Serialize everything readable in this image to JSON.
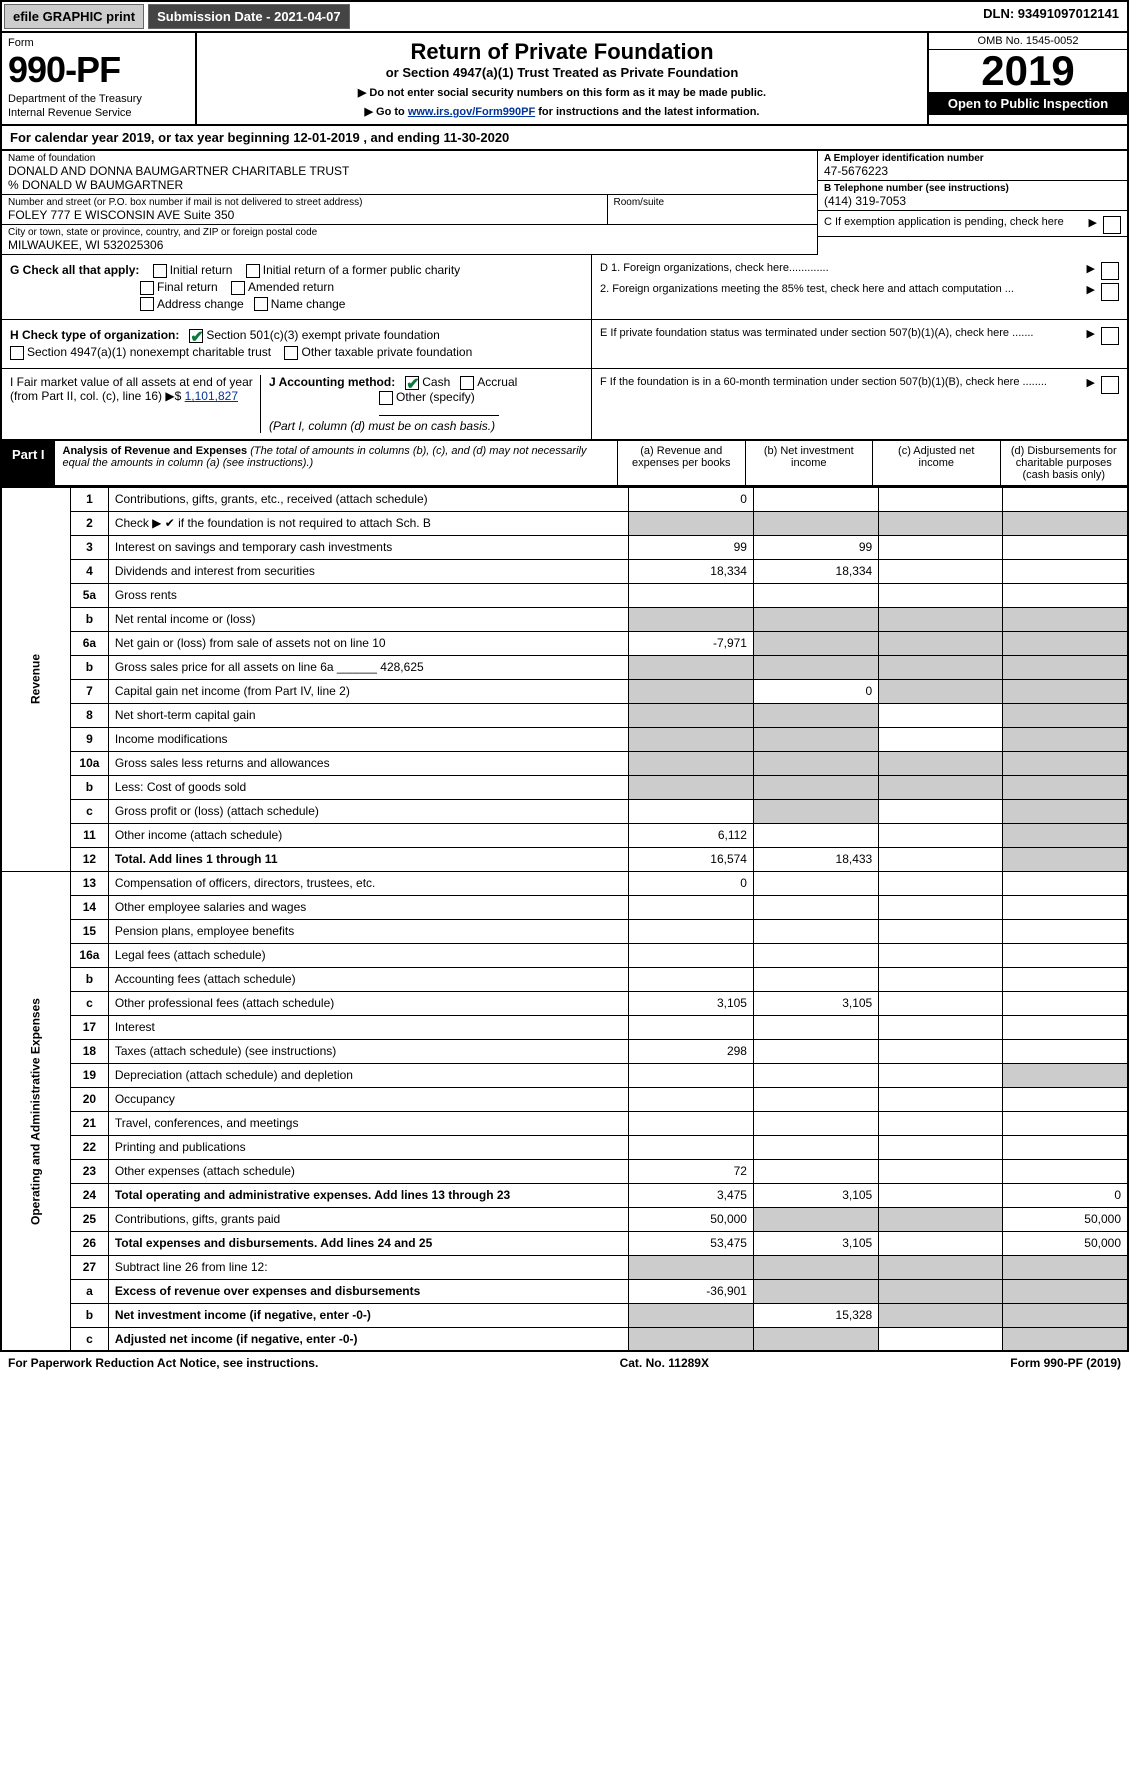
{
  "topbar": {
    "efile": "efile GRAPHIC print",
    "submission": "Submission Date - 2021-04-07",
    "dln": "DLN: 93491097012141"
  },
  "header": {
    "form_label": "Form",
    "form_number": "990-PF",
    "dept1": "Department of the Treasury",
    "dept2": "Internal Revenue Service",
    "title": "Return of Private Foundation",
    "subtitle": "or Section 4947(a)(1) Trust Treated as Private Foundation",
    "instr1": "▶ Do not enter social security numbers on this form as it may be made public.",
    "instr2_pre": "▶ Go to ",
    "instr2_link": "www.irs.gov/Form990PF",
    "instr2_post": " for instructions and the latest information.",
    "omb": "OMB No. 1545-0052",
    "year": "2019",
    "open": "Open to Public Inspection"
  },
  "calyear": "For calendar year 2019, or tax year beginning 12-01-2019             , and ending 11-30-2020",
  "meta": {
    "name_label": "Name of foundation",
    "name": "DONALD AND DONNA BAUMGARTNER CHARITABLE TRUST",
    "care_of": "% DONALD W BAUMGARTNER",
    "addr_label": "Number and street (or P.O. box number if mail is not delivered to street address)",
    "addr": "FOLEY 777 E WISCONSIN AVE Suite 350",
    "room_label": "Room/suite",
    "city_label": "City or town, state or province, country, and ZIP or foreign postal code",
    "city": "MILWAUKEE, WI  532025306",
    "a_label": "A Employer identification number",
    "a_val": "47-5676223",
    "b_label": "B Telephone number (see instructions)",
    "b_val": "(414) 319-7053",
    "c_label": "C If exemption application is pending, check here"
  },
  "checks": {
    "g_label": "G Check all that apply:",
    "g1": "Initial return",
    "g2": "Initial return of a former public charity",
    "g3": "Final return",
    "g4": "Amended return",
    "g5": "Address change",
    "g6": "Name change",
    "h_label": "H Check type of organization:",
    "h1": "Section 501(c)(3) exempt private foundation",
    "h2": "Section 4947(a)(1) nonexempt charitable trust",
    "h3": "Other taxable private foundation",
    "i_label": "I Fair market value of all assets at end of year (from Part II, col. (c), line 16) ▶$ ",
    "i_val": "1,101,827",
    "j_label": "J Accounting method:",
    "j1": "Cash",
    "j2": "Accrual",
    "j3": "Other (specify)",
    "j_note": "(Part I, column (d) must be on cash basis.)",
    "d1": "D 1. Foreign organizations, check here.............",
    "d2": "2. Foreign organizations meeting the 85% test, check here and attach computation ...",
    "e": "E  If private foundation status was terminated under section 507(b)(1)(A), check here .......",
    "f": "F  If the foundation is in a 60-month termination under section 507(b)(1)(B), check here ........"
  },
  "part1": {
    "label": "Part I",
    "title": "Analysis of Revenue and Expenses",
    "note": "(The total of amounts in columns (b), (c), and (d) may not necessarily equal the amounts in column (a) (see instructions).)",
    "col_a": "(a)   Revenue and expenses per books",
    "col_b": "(b)  Net investment income",
    "col_c": "(c)  Adjusted net income",
    "col_d": "(d)  Disbursements for charitable purposes (cash basis only)"
  },
  "sections": {
    "revenue": "Revenue",
    "expenses": "Operating and Administrative Expenses"
  },
  "rows": [
    {
      "n": "1",
      "t": "Contributions, gifts, grants, etc., received (attach schedule)",
      "a": "0",
      "b": "",
      "c": "",
      "d": ""
    },
    {
      "n": "2",
      "t": "Check ▶ ✔ if the foundation is not required to attach Sch. B",
      "a": "",
      "b": "",
      "c": "",
      "d": "",
      "shade_bcd": true,
      "shade_a": true
    },
    {
      "n": "3",
      "t": "Interest on savings and temporary cash investments",
      "a": "99",
      "b": "99",
      "c": "",
      "d": ""
    },
    {
      "n": "4",
      "t": "Dividends and interest from securities",
      "a": "18,334",
      "b": "18,334",
      "c": "",
      "d": ""
    },
    {
      "n": "5a",
      "t": "Gross rents",
      "a": "",
      "b": "",
      "c": "",
      "d": ""
    },
    {
      "n": "b",
      "t": "Net rental income or (loss)",
      "a": "",
      "b": "",
      "c": "",
      "d": "",
      "shade_all": true
    },
    {
      "n": "6a",
      "t": "Net gain or (loss) from sale of assets not on line 10",
      "a": "-7,971",
      "b": "",
      "c": "",
      "d": "",
      "shade_bcd": true
    },
    {
      "n": "b",
      "t": "Gross sales price for all assets on line 6a ______ 428,625",
      "a": "",
      "b": "",
      "c": "",
      "d": "",
      "shade_all": true
    },
    {
      "n": "7",
      "t": "Capital gain net income (from Part IV, line 2)",
      "a": "",
      "b": "0",
      "c": "",
      "d": "",
      "shade_a": true,
      "shade_cd": true
    },
    {
      "n": "8",
      "t": "Net short-term capital gain",
      "a": "",
      "b": "",
      "c": "",
      "d": "",
      "shade_ab": true,
      "shade_d": true
    },
    {
      "n": "9",
      "t": "Income modifications",
      "a": "",
      "b": "",
      "c": "",
      "d": "",
      "shade_ab": true,
      "shade_d": true
    },
    {
      "n": "10a",
      "t": "Gross sales less returns and allowances",
      "a": "",
      "b": "",
      "c": "",
      "d": "",
      "shade_all": true
    },
    {
      "n": "b",
      "t": "Less: Cost of goods sold",
      "a": "",
      "b": "",
      "c": "",
      "d": "",
      "shade_all": true
    },
    {
      "n": "c",
      "t": "Gross profit or (loss) (attach schedule)",
      "a": "",
      "b": "",
      "c": "",
      "d": "",
      "shade_b": true,
      "shade_d": true
    },
    {
      "n": "11",
      "t": "Other income (attach schedule)",
      "a": "6,112",
      "b": "",
      "c": "",
      "d": "",
      "shade_d": true
    },
    {
      "n": "12",
      "t": "Total. Add lines 1 through 11",
      "a": "16,574",
      "b": "18,433",
      "c": "",
      "d": "",
      "bold": true,
      "shade_d": true
    },
    {
      "n": "13",
      "t": "Compensation of officers, directors, trustees, etc.",
      "a": "0",
      "b": "",
      "c": "",
      "d": ""
    },
    {
      "n": "14",
      "t": "Other employee salaries and wages",
      "a": "",
      "b": "",
      "c": "",
      "d": ""
    },
    {
      "n": "15",
      "t": "Pension plans, employee benefits",
      "a": "",
      "b": "",
      "c": "",
      "d": ""
    },
    {
      "n": "16a",
      "t": "Legal fees (attach schedule)",
      "a": "",
      "b": "",
      "c": "",
      "d": ""
    },
    {
      "n": "b",
      "t": "Accounting fees (attach schedule)",
      "a": "",
      "b": "",
      "c": "",
      "d": ""
    },
    {
      "n": "c",
      "t": "Other professional fees (attach schedule)",
      "a": "3,105",
      "b": "3,105",
      "c": "",
      "d": ""
    },
    {
      "n": "17",
      "t": "Interest",
      "a": "",
      "b": "",
      "c": "",
      "d": ""
    },
    {
      "n": "18",
      "t": "Taxes (attach schedule) (see instructions)",
      "a": "298",
      "b": "",
      "c": "",
      "d": ""
    },
    {
      "n": "19",
      "t": "Depreciation (attach schedule) and depletion",
      "a": "",
      "b": "",
      "c": "",
      "d": "",
      "shade_d": true
    },
    {
      "n": "20",
      "t": "Occupancy",
      "a": "",
      "b": "",
      "c": "",
      "d": ""
    },
    {
      "n": "21",
      "t": "Travel, conferences, and meetings",
      "a": "",
      "b": "",
      "c": "",
      "d": ""
    },
    {
      "n": "22",
      "t": "Printing and publications",
      "a": "",
      "b": "",
      "c": "",
      "d": ""
    },
    {
      "n": "23",
      "t": "Other expenses (attach schedule)",
      "a": "72",
      "b": "",
      "c": "",
      "d": ""
    },
    {
      "n": "24",
      "t": "Total operating and administrative expenses. Add lines 13 through 23",
      "a": "3,475",
      "b": "3,105",
      "c": "",
      "d": "0",
      "bold": true
    },
    {
      "n": "25",
      "t": "Contributions, gifts, grants paid",
      "a": "50,000",
      "b": "",
      "c": "",
      "d": "50,000",
      "shade_bc": true
    },
    {
      "n": "26",
      "t": "Total expenses and disbursements. Add lines 24 and 25",
      "a": "53,475",
      "b": "3,105",
      "c": "",
      "d": "50,000",
      "bold": true
    },
    {
      "n": "27",
      "t": "Subtract line 26 from line 12:",
      "a": "",
      "b": "",
      "c": "",
      "d": "",
      "shade_all": true
    },
    {
      "n": "a",
      "t": "Excess of revenue over expenses and disbursements",
      "a": "-36,901",
      "b": "",
      "c": "",
      "d": "",
      "bold": true,
      "shade_bcd": true
    },
    {
      "n": "b",
      "t": "Net investment income (if negative, enter -0-)",
      "a": "",
      "b": "15,328",
      "c": "",
      "d": "",
      "bold": true,
      "shade_a": true,
      "shade_cd": true
    },
    {
      "n": "c",
      "t": "Adjusted net income (if negative, enter -0-)",
      "a": "",
      "b": "",
      "c": "",
      "d": "",
      "bold": true,
      "shade_ab": true,
      "shade_d": true
    }
  ],
  "footer": {
    "left": "For Paperwork Reduction Act Notice, see instructions.",
    "mid": "Cat. No. 11289X",
    "right": "Form 990-PF (2019)"
  }
}
